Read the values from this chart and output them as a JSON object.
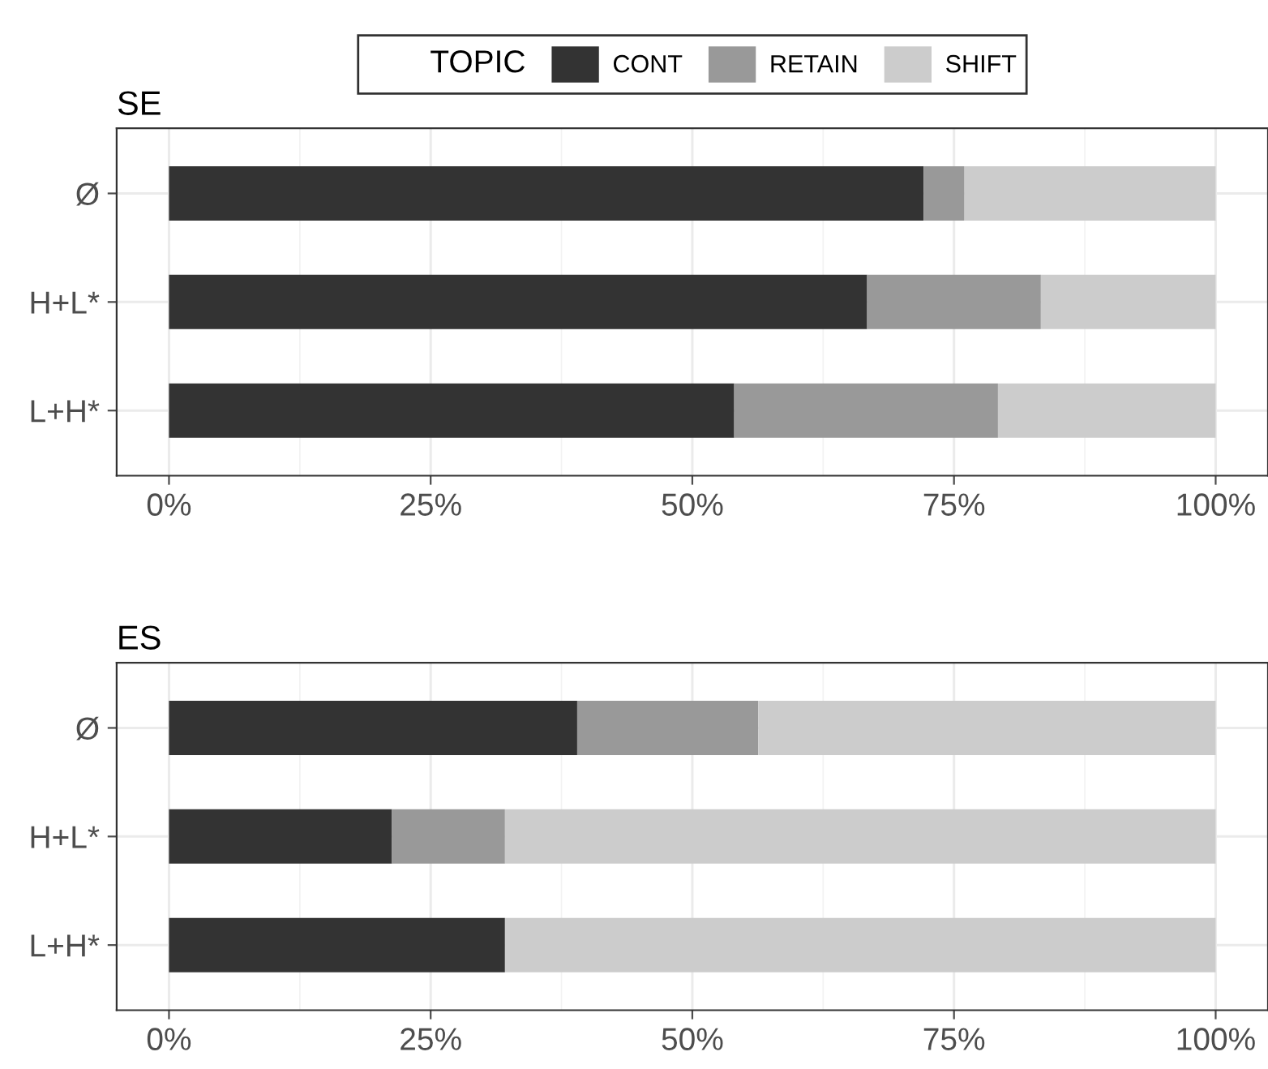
{
  "chart_data": [
    {
      "type": "bar",
      "title": "SE",
      "orientation": "horizontal",
      "stacked": true,
      "categories": [
        "Ø",
        "H+L*",
        "L+H*"
      ],
      "legend_title": "TOPIC",
      "legend": "top",
      "grid": true,
      "series": [
        {
          "name": "CONT",
          "color": "#333333",
          "values": [
            72.1,
            66.7,
            54.0
          ]
        },
        {
          "name": "RETAIN",
          "color": "#999999",
          "values": [
            3.9,
            16.6,
            25.2
          ]
        },
        {
          "name": "SHIFT",
          "color": "#cccccc",
          "values": [
            24.0,
            16.7,
            20.8
          ]
        }
      ],
      "xlim": [
        -5,
        105
      ],
      "xticks": [
        {
          "value": 0,
          "label": "0%"
        },
        {
          "value": 25,
          "label": "25%"
        },
        {
          "value": 50,
          "label": "50%"
        },
        {
          "value": 75,
          "label": "75%"
        },
        {
          "value": 100,
          "label": "100%"
        }
      ]
    },
    {
      "type": "bar",
      "title": "ES",
      "orientation": "horizontal",
      "stacked": true,
      "categories": [
        "Ø",
        "H+L*",
        "L+H*"
      ],
      "legend": false,
      "grid": true,
      "series": [
        {
          "color": "#333333",
          "values": [
            39.0,
            21.3,
            32.1
          ]
        },
        {
          "color": "#999999",
          "values": [
            17.3,
            10.8,
            0
          ]
        },
        {
          "color": "#cccccc",
          "values": [
            43.7,
            67.9,
            67.9
          ]
        }
      ],
      "xlim": [
        -5,
        105
      ],
      "xticks": [
        {
          "value": 0,
          "label": "0%"
        },
        {
          "value": 25,
          "label": "25%"
        },
        {
          "value": 50,
          "label": "50%"
        },
        {
          "value": 75,
          "label": "75%"
        },
        {
          "value": 100,
          "label": "100%"
        }
      ]
    }
  ]
}
